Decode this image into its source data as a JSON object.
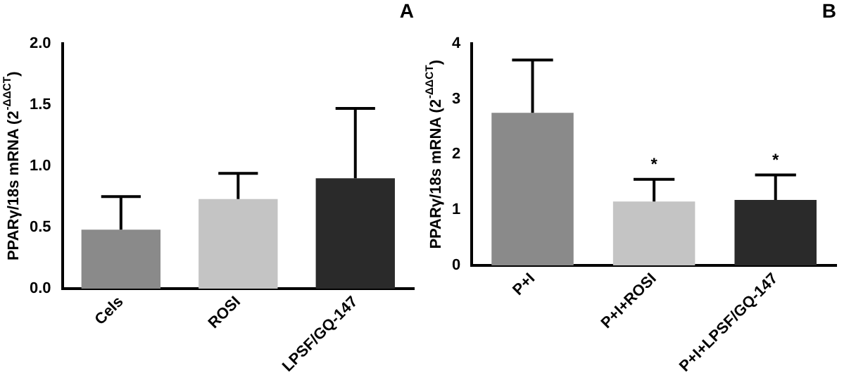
{
  "chart_data": [
    {
      "type": "bar",
      "title": "A",
      "ylabel": "PPARγ/18s mRNA (2$^{-ΔΔCT}$)",
      "categories": [
        "Cels",
        "ROSI",
        "LPSF/GQ-147"
      ],
      "values": [
        0.48,
        0.73,
        0.9
      ],
      "colors": [
        "#8a8a8a",
        "#c4c4c4",
        "#2a2a2a"
      ],
      "errors": [
        [
          0.48,
          0.75
        ],
        [
          0.73,
          0.94
        ],
        [
          0.9,
          1.47
        ]
      ],
      "ylim": [
        0,
        2
      ],
      "yticks": [
        {
          "value": 0,
          "label": "0.0"
        },
        {
          "value": 0.5,
          "label": "0.5"
        },
        {
          "value": 1,
          "label": "1.0"
        },
        {
          "value": 1.5,
          "label": "1.5"
        },
        {
          "value": 2,
          "label": "2.0"
        }
      ],
      "grid": false,
      "legend": false
    },
    {
      "type": "bar",
      "title": "B",
      "ylabel": "PPARγ/18s mRNA (2$^{-ΔΔCT}$)",
      "categories": [
        "P+I",
        "P+I+ROSI",
        "P+I+LPSF/GQ-147"
      ],
      "values": [
        2.75,
        1.15,
        1.18
      ],
      "colors": [
        "#8a8a8a",
        "#c4c4c4",
        "#2a2a2a"
      ],
      "errors": [
        [
          2.75,
          3.7
        ],
        [
          1.15,
          1.55
        ],
        [
          1.18,
          1.63
        ]
      ],
      "ylim": [
        0,
        4
      ],
      "yticks": [
        0,
        1,
        2,
        3,
        4
      ],
      "grid": false,
      "legend": false,
      "annotations": [
        {
          "text": "*",
          "x": "P+I+ROSI",
          "y": 1.55
        },
        {
          "text": "*",
          "x": "P+I+LPSF/GQ-147",
          "y": 1.63
        }
      ]
    }
  ]
}
